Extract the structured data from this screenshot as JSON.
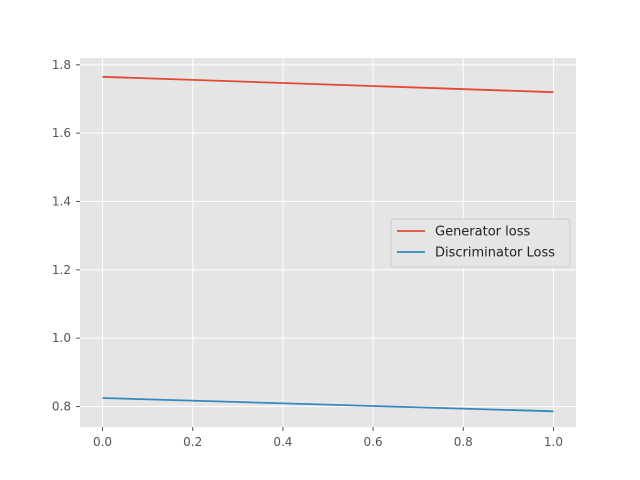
{
  "chart_data": {
    "type": "line",
    "title": "",
    "xlabel": "",
    "ylabel": "",
    "x": [
      0.0,
      1.0
    ],
    "xlim": [
      -0.05,
      1.05
    ],
    "ylim": [
      0.74,
      1.82
    ],
    "xticks": [
      0.0,
      0.2,
      0.4,
      0.6,
      0.8,
      1.0
    ],
    "xtick_labels": [
      "0.0",
      "0.2",
      "0.4",
      "0.6",
      "0.8",
      "1.0"
    ],
    "yticks": [
      0.8,
      1.0,
      1.2,
      1.4,
      1.6,
      1.8
    ],
    "ytick_labels": [
      "0.8",
      "1.0",
      "1.2",
      "1.4",
      "1.6",
      "1.8"
    ],
    "grid": true,
    "legend_position": "center-right",
    "series": [
      {
        "name": "Generator loss",
        "values": [
          1.765,
          1.72
        ],
        "color": "#E24A33"
      },
      {
        "name": "Discriminator Loss",
        "values": [
          0.825,
          0.786
        ],
        "color": "#348ABD"
      }
    ],
    "colors": {
      "plot_background": "#E5E5E5",
      "grid": "#FFFFFF",
      "tick": "#555555"
    }
  }
}
